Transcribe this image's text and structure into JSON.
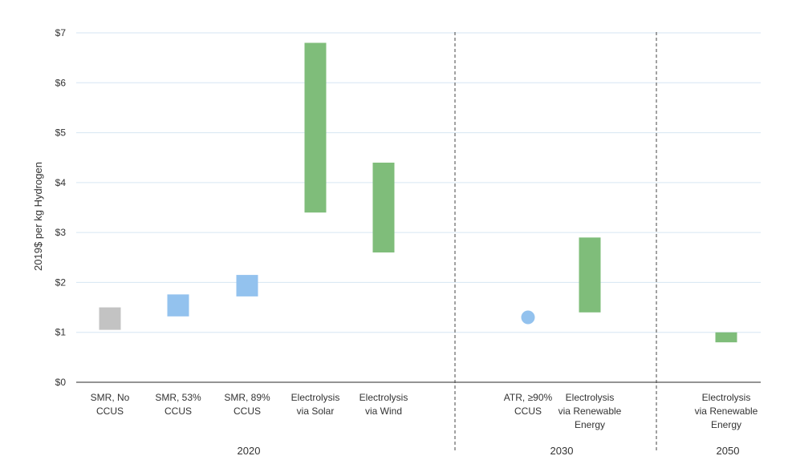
{
  "chart_data": {
    "type": "range-bar",
    "ylabel": "2019$ per kg Hydrogen",
    "ylim": [
      0,
      7
    ],
    "yticks": [
      {
        "value": 0,
        "label": "$0"
      },
      {
        "value": 1,
        "label": "$1"
      },
      {
        "value": 2,
        "label": "$2"
      },
      {
        "value": 3,
        "label": "$3"
      },
      {
        "value": 4,
        "label": "$4"
      },
      {
        "value": 5,
        "label": "$5"
      },
      {
        "value": 6,
        "label": "$6"
      },
      {
        "value": 7,
        "label": "$7"
      }
    ],
    "grid": true,
    "categories": [
      {
        "lines": [
          "SMR, No",
          "CCUS"
        ],
        "group": "2020",
        "low": 1.05,
        "high": 1.5,
        "color": "#c3c3c3",
        "marker": "bar"
      },
      {
        "lines": [
          "SMR, 53%",
          "CCUS"
        ],
        "group": "2020",
        "low": 1.32,
        "high": 1.76,
        "color": "#93c2ee",
        "marker": "bar"
      },
      {
        "lines": [
          "SMR, 89%",
          "CCUS"
        ],
        "group": "2020",
        "low": 1.72,
        "high": 2.15,
        "color": "#93c2ee",
        "marker": "bar"
      },
      {
        "lines": [
          "Electrolysis",
          "via Solar"
        ],
        "group": "2020",
        "low": 3.4,
        "high": 6.8,
        "color": "#7fbd7a",
        "marker": "bar"
      },
      {
        "lines": [
          "Electrolysis",
          "via Wind"
        ],
        "group": "2020",
        "low": 2.6,
        "high": 4.4,
        "color": "#7fbd7a",
        "marker": "bar"
      },
      {
        "lines": [
          "ATR, ≥90%",
          "CCUS"
        ],
        "group": "2030",
        "value": 1.3,
        "color": "#93c2ee",
        "marker": "dot"
      },
      {
        "lines": [
          "Electrolysis",
          "via Renewable",
          "Energy"
        ],
        "group": "2030",
        "low": 1.4,
        "high": 2.9,
        "color": "#7fbd7a",
        "marker": "bar"
      },
      {
        "lines": [
          "Electrolysis",
          "via Renewable",
          "Energy"
        ],
        "group": "2050",
        "low": 0.8,
        "high": 1.0,
        "color": "#7fbd7a",
        "marker": "bar"
      }
    ],
    "groups": [
      "2020",
      "2030",
      "2050"
    ]
  }
}
